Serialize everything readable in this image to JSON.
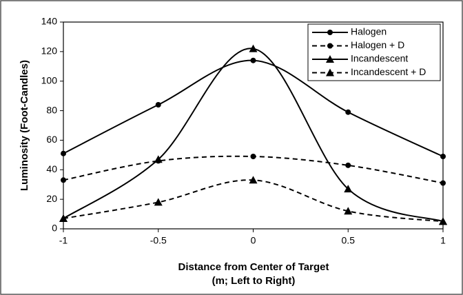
{
  "chart_data": {
    "type": "line",
    "x": [
      -1,
      -0.5,
      0,
      0.5,
      1
    ],
    "xlim": [
      -1,
      1
    ],
    "xticks": [
      -1,
      -0.5,
      0,
      0.5,
      1
    ],
    "ylim": [
      0,
      140
    ],
    "yticks": [
      0,
      20,
      40,
      60,
      80,
      100,
      120,
      140
    ],
    "xlabel": [
      "Distance from Center of Target",
      "(m; Left to Right)"
    ],
    "ylabel": "Luminosity (Foot-Candles)",
    "legend": "upper right",
    "smooth": true,
    "series": [
      {
        "name": "Halogen",
        "color": "#000000",
        "marker": "circle",
        "dashed": false,
        "values": [
          51,
          84,
          114,
          79,
          49
        ]
      },
      {
        "name": "Halogen + D",
        "color": "#000000",
        "marker": "circle",
        "dashed": true,
        "values": [
          33,
          46,
          49,
          43,
          31
        ]
      },
      {
        "name": "Incandescent",
        "color": "#000000",
        "marker": "triangle",
        "dashed": false,
        "values": [
          7,
          47,
          122,
          27,
          5
        ]
      },
      {
        "name": "Incandescent + D",
        "color": "#000000",
        "marker": "triangle",
        "dashed": true,
        "values": [
          7,
          18,
          33,
          12,
          5
        ]
      }
    ]
  }
}
